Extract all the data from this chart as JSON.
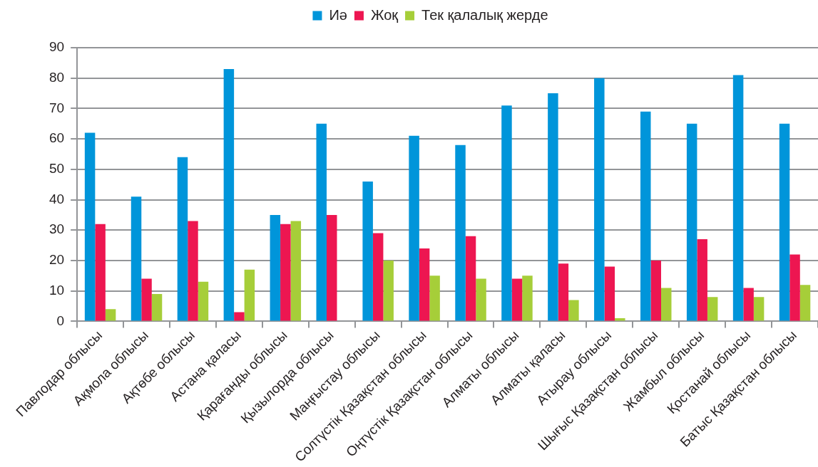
{
  "chart_data": {
    "type": "bar",
    "categories": [
      "Павлодар облысы",
      "Ақмола облысы",
      "Ақтөбе облысы",
      "Астана қаласы",
      "Қарағанды облысы",
      "Қызылорда облысы",
      "Маңғыстау облысы",
      "Солтүстік Қазақстан облысы",
      "Оңтүстік Қазақстан облысы",
      "Алматы облысы",
      "Алматы қаласы",
      "Атырау облысы",
      "Шығыс Қазақстан облысы",
      "Жамбыл облысы",
      "Қостанай облысы",
      "Батыс Қазақстан облысы"
    ],
    "series": [
      {
        "name": "Иә",
        "color": "#0095da",
        "values": [
          62,
          41,
          54,
          83,
          35,
          65,
          46,
          61,
          58,
          71,
          75,
          80,
          69,
          65,
          81,
          65
        ]
      },
      {
        "name": "Жоқ",
        "color": "#ed1651",
        "values": [
          32,
          14,
          33,
          3,
          32,
          35,
          29,
          24,
          28,
          14,
          19,
          18,
          20,
          27,
          11,
          22
        ]
      },
      {
        "name": "Тек қалалық жерде",
        "color": "#a6ce39",
        "values": [
          4,
          9,
          13,
          17,
          33,
          null,
          20,
          15,
          14,
          15,
          7,
          1,
          11,
          8,
          8,
          12
        ]
      }
    ],
    "ylim": [
      0,
      90
    ],
    "yticks": [
      0,
      10,
      20,
      30,
      40,
      50,
      60,
      70,
      80,
      90
    ],
    "grid": "y",
    "legend": "top"
  }
}
